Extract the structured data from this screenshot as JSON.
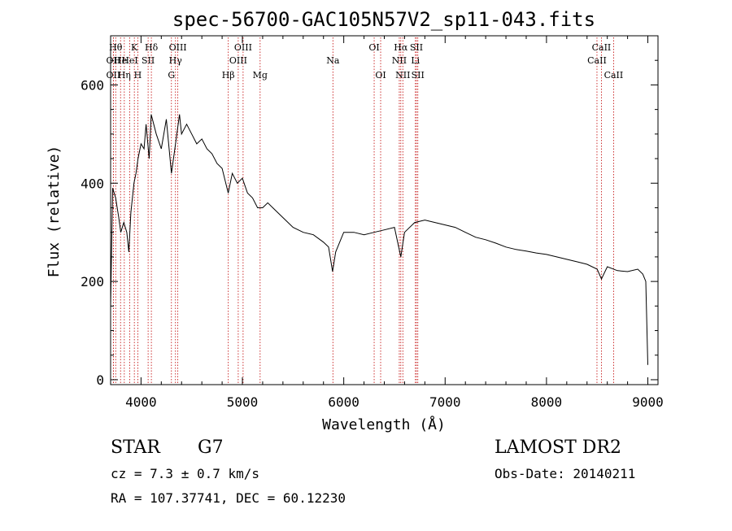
{
  "chart_data": {
    "type": "line",
    "title": "spec-56700-GAC105N57V2_sp11-043.fits",
    "xlabel": "Wavelength (Å)",
    "ylabel": "Flux (relative)",
    "xlim": [
      3700,
      9100
    ],
    "ylim": [
      -10,
      700
    ],
    "xticks": [
      4000,
      5000,
      6000,
      7000,
      8000,
      9000
    ],
    "yticks": [
      0,
      200,
      400,
      600
    ],
    "grid": false,
    "series": [
      {
        "x": [
          3700,
          3720,
          3750,
          3780,
          3800,
          3830,
          3860,
          3880,
          3900,
          3930,
          3950,
          3970,
          4000,
          4030,
          4050,
          4080,
          4100,
          4150,
          4200,
          4250,
          4300,
          4340,
          4380,
          4400,
          4450,
          4500,
          4550,
          4600,
          4650,
          4700,
          4750,
          4800,
          4860,
          4900,
          4950,
          5000,
          5050,
          5100,
          5150,
          5200,
          5250,
          5300,
          5400,
          5500,
          5600,
          5700,
          5800,
          5850,
          5890,
          5920,
          6000,
          6100,
          6200,
          6300,
          6400,
          6500,
          6563,
          6600,
          6700,
          6800,
          6900,
          7000,
          7100,
          7200,
          7300,
          7400,
          7500,
          7600,
          7700,
          7800,
          7900,
          8000,
          8100,
          8200,
          8300,
          8400,
          8500,
          8542,
          8600,
          8700,
          8800,
          8900,
          8950,
          8980,
          9000
        ],
        "y": [
          150,
          390,
          370,
          330,
          300,
          320,
          300,
          260,
          340,
          400,
          420,
          450,
          480,
          470,
          520,
          450,
          540,
          500,
          470,
          530,
          420,
          480,
          540,
          500,
          520,
          500,
          480,
          490,
          470,
          460,
          440,
          430,
          380,
          420,
          400,
          410,
          380,
          370,
          350,
          350,
          360,
          350,
          330,
          310,
          300,
          295,
          280,
          270,
          220,
          260,
          300,
          300,
          295,
          300,
          305,
          310,
          250,
          300,
          320,
          325,
          320,
          315,
          310,
          300,
          290,
          285,
          278,
          270,
          265,
          262,
          258,
          255,
          250,
          245,
          240,
          235,
          225,
          205,
          230,
          222,
          220,
          225,
          215,
          200,
          30
        ]
      }
    ],
    "lines": [
      {
        "wl": 3727,
        "label": "OII",
        "row": 2
      },
      {
        "wl": 3727,
        "label": "OII",
        "row": 3
      },
      {
        "wl": 3750,
        "label": "Hθ",
        "row": 1
      },
      {
        "wl": 3798,
        "label": "He",
        "row": 2
      },
      {
        "wl": 3835,
        "label": "Hη",
        "row": 3
      },
      {
        "wl": 3889,
        "label": "HeI",
        "row": 2
      },
      {
        "wl": 3934,
        "label": "K",
        "row": 1
      },
      {
        "wl": 3968,
        "label": "H",
        "row": 3
      },
      {
        "wl": 4070,
        "label": "SII",
        "row": 2
      },
      {
        "wl": 4102,
        "label": "Hδ",
        "row": 1
      },
      {
        "wl": 4300,
        "label": "G",
        "row": 3
      },
      {
        "wl": 4340,
        "label": "Hγ",
        "row": 2
      },
      {
        "wl": 4363,
        "label": "OIII",
        "row": 1
      },
      {
        "wl": 4861,
        "label": "Hβ",
        "row": 3
      },
      {
        "wl": 4959,
        "label": "OIII",
        "row": 2
      },
      {
        "wl": 5007,
        "label": "OIII",
        "row": 1
      },
      {
        "wl": 5175,
        "label": "Mg",
        "row": 3
      },
      {
        "wl": 5893,
        "label": "Na",
        "row": 2
      },
      {
        "wl": 6300,
        "label": "OI",
        "row": 1
      },
      {
        "wl": 6364,
        "label": "OI",
        "row": 3
      },
      {
        "wl": 6548,
        "label": "NII",
        "row": 2
      },
      {
        "wl": 6563,
        "label": "Hα",
        "row": 1
      },
      {
        "wl": 6583,
        "label": "NII",
        "row": 3
      },
      {
        "wl": 6707,
        "label": "Li",
        "row": 2
      },
      {
        "wl": 6717,
        "label": "SII",
        "row": 1
      },
      {
        "wl": 6731,
        "label": "SII",
        "row": 3
      },
      {
        "wl": 8498,
        "label": "CaII",
        "row": 2
      },
      {
        "wl": 8542,
        "label": "CaII",
        "row": 1
      },
      {
        "wl": 8662,
        "label": "CaII",
        "row": 3
      }
    ]
  },
  "info": {
    "class": "STAR",
    "subclass": "G7",
    "survey": "LAMOST DR2",
    "cz": "cz = 7.3 ± 0.7 km/s",
    "obs_date": "Obs-Date: 20140211",
    "radec": "RA = 107.37741, DEC =  60.12230"
  },
  "colors": {
    "line_marker": "#c00000",
    "spectrum": "#000000",
    "axes": "#000000"
  }
}
